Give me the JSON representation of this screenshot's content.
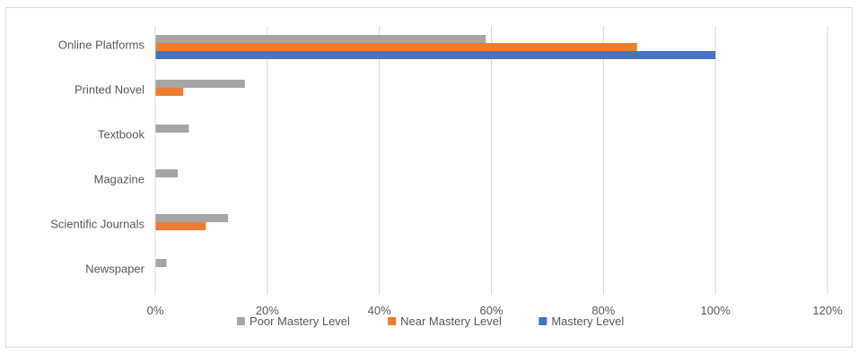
{
  "chart_data": {
    "type": "bar",
    "orientation": "horizontal",
    "categories": [
      "Online Platforms",
      "Printed Novel",
      "Textbook",
      "Magazine",
      "Scientific Journals",
      "Newspaper"
    ],
    "series": [
      {
        "name": "Poor Mastery Level",
        "color": "#a5a5a5",
        "values": [
          59,
          16,
          6,
          4,
          13,
          2
        ]
      },
      {
        "name": "Near Mastery Level",
        "color": "#ed7d31",
        "values": [
          86,
          5,
          0,
          0,
          9,
          0
        ]
      },
      {
        "name": "Mastery Level",
        "color": "#4472c4",
        "values": [
          100,
          0,
          0,
          0,
          0,
          0
        ]
      }
    ],
    "x_ticks": [
      "0%",
      "20%",
      "40%",
      "60%",
      "80%",
      "100%",
      "120%"
    ],
    "xlim": [
      0,
      120
    ],
    "grid": true,
    "legend_position": "bottom"
  }
}
